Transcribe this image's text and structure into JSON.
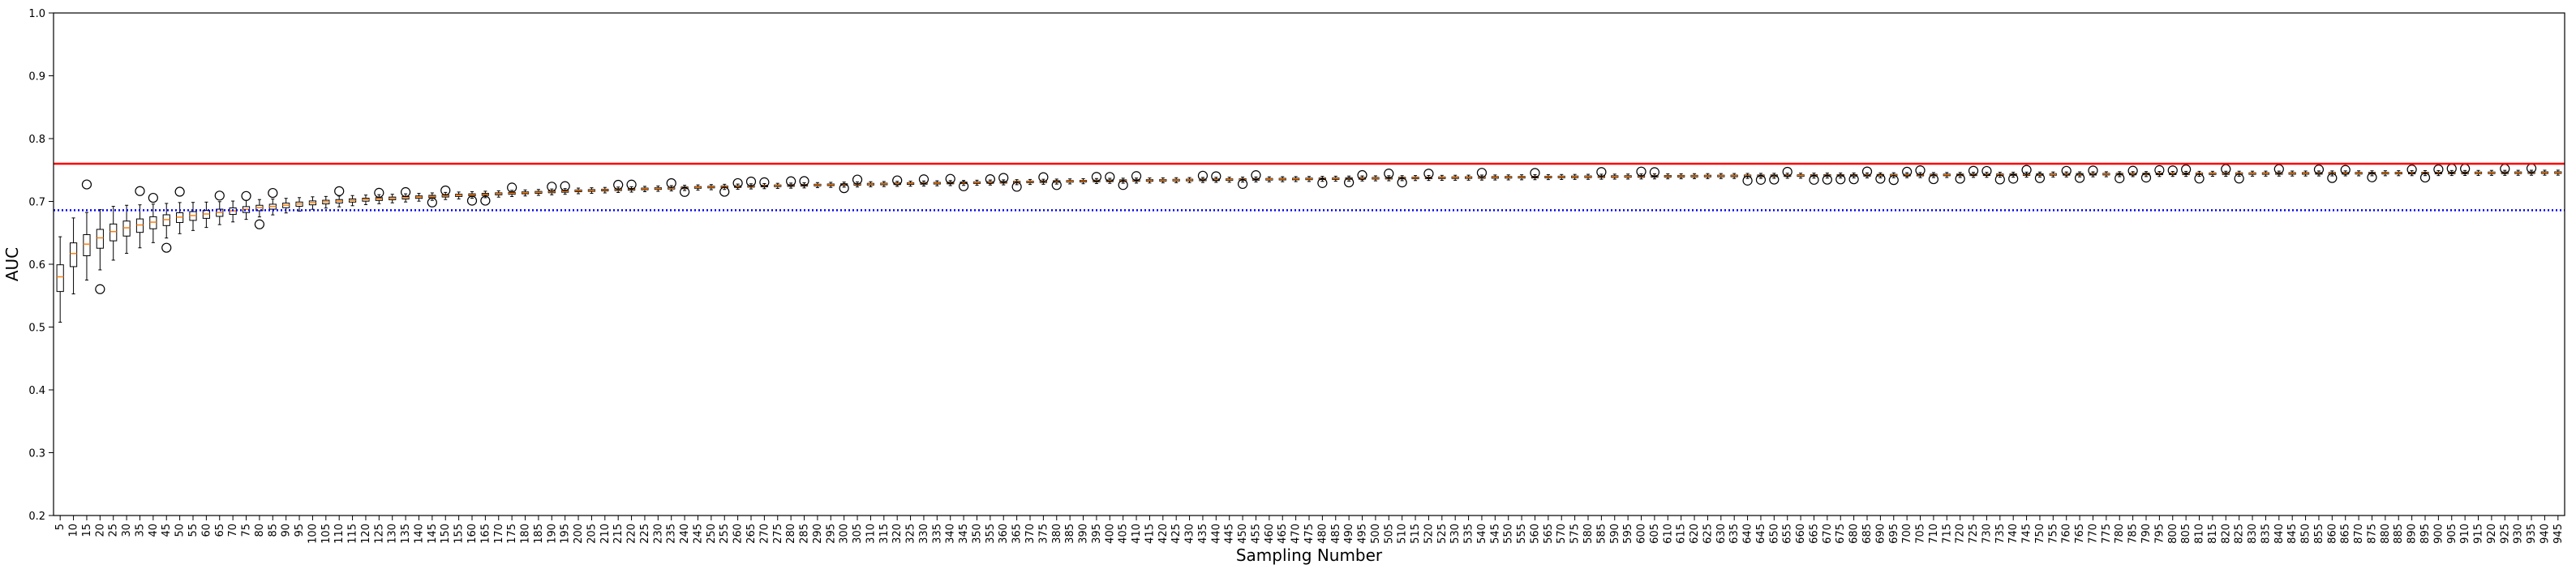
{
  "chart_data": {
    "type": "box",
    "xlabel": "Sampling Number",
    "ylabel": "AUC",
    "ylim": [
      0.2,
      1.0
    ],
    "yticks": [
      0.2,
      0.3,
      0.4,
      0.5,
      0.6,
      0.7,
      0.8,
      0.9,
      1.0
    ],
    "x_start": 5,
    "x_step": 5,
    "x_count": 189,
    "reference_lines": [
      {
        "value": 0.76,
        "color": "#ff0000",
        "style": "solid"
      },
      {
        "value": 0.686,
        "color": "#0000ff",
        "style": "dotted"
      }
    ],
    "box_color": "#000000",
    "median_color": "#ff7f0e",
    "grid": false,
    "median_anchors": [
      [
        5,
        0.58
      ],
      [
        10,
        0.617
      ],
      [
        15,
        0.632
      ],
      [
        20,
        0.642
      ],
      [
        25,
        0.652
      ],
      [
        30,
        0.658
      ],
      [
        40,
        0.667
      ],
      [
        50,
        0.675
      ],
      [
        60,
        0.68
      ],
      [
        80,
        0.69
      ],
      [
        100,
        0.698
      ],
      [
        120,
        0.703
      ],
      [
        150,
        0.709
      ],
      [
        200,
        0.717
      ],
      [
        250,
        0.723
      ],
      [
        300,
        0.727
      ],
      [
        400,
        0.733
      ],
      [
        500,
        0.737
      ],
      [
        600,
        0.74
      ],
      [
        700,
        0.742
      ],
      [
        800,
        0.744
      ],
      [
        945,
        0.746
      ]
    ]
  }
}
